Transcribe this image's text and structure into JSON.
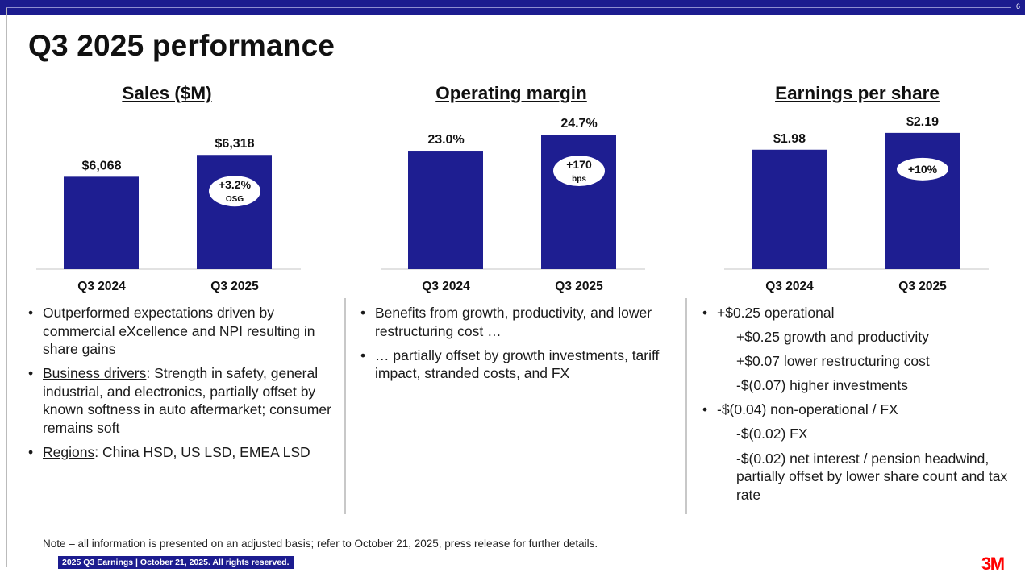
{
  "page_number": "6",
  "title": "Q3 2025 performance",
  "colors": {
    "brand_blue": "#1c1c8f",
    "bar": "#1e1e91",
    "logo_red": "#ff0000"
  },
  "chart_data": [
    {
      "type": "bar",
      "title": "Sales ($M)",
      "categories": [
        "Q3 2024",
        "Q3 2025"
      ],
      "values": [
        6068,
        6318
      ],
      "data_labels": [
        "$6,068",
        "$6,318"
      ],
      "ylim": [
        5010,
        6800
      ],
      "badge": {
        "main": "+3.2%",
        "sub": "OSG"
      }
    },
    {
      "type": "bar",
      "title": "Operating margin",
      "categories": [
        "Q3 2024",
        "Q3 2025"
      ],
      "values": [
        23.0,
        24.7
      ],
      "data_labels": [
        "23.0%",
        "24.7%"
      ],
      "ylim": [
        10.5,
        27
      ],
      "badge": {
        "main": "+170",
        "sub": "bps"
      }
    },
    {
      "type": "bar",
      "title": "Earnings per share",
      "categories": [
        "Q3 2024",
        "Q3 2025"
      ],
      "values": [
        1.98,
        2.19
      ],
      "data_labels": [
        "$1.98",
        "$2.19"
      ],
      "ylim": [
        0.49,
        2.44
      ],
      "badge": {
        "main": "+10%",
        "sub": ""
      }
    }
  ],
  "columns": [
    [
      {
        "level": 1,
        "underline": "",
        "text": "Outperformed expectations driven by commercial eXcellence and NPI resulting in share gains"
      },
      {
        "level": 1,
        "underline": "Business drivers",
        "text": ": Strength in safety, general industrial, and electronics, partially offset by known softness in auto aftermarket; consumer remains soft"
      },
      {
        "level": 1,
        "underline": "Regions",
        "text": ": China HSD, US LSD, EMEA LSD"
      }
    ],
    [
      {
        "level": 1,
        "underline": "",
        "text": "Benefits from growth, productivity, and lower restructuring cost …"
      },
      {
        "level": 1,
        "underline": "",
        "text": "… partially offset by growth investments, tariff impact, stranded costs, and FX"
      }
    ],
    [
      {
        "level": 1,
        "underline": "",
        "text": "+$0.25 operational"
      },
      {
        "level": 2,
        "underline": "",
        "text": "+$0.25 growth and productivity"
      },
      {
        "level": 2,
        "underline": "",
        "text": "+$0.07 lower restructuring cost"
      },
      {
        "level": 2,
        "underline": "",
        "text": "-$(0.07) higher investments"
      },
      {
        "level": 1,
        "underline": "",
        "text": "-$(0.04) non-operational / FX"
      },
      {
        "level": 2,
        "underline": "",
        "text": "-$(0.02) FX"
      },
      {
        "level": 2,
        "underline": "",
        "text": "-$(0.02) net interest / pension headwind, partially offset by lower share count and tax rate"
      }
    ]
  ],
  "note": "Note – all information is presented on an adjusted basis; refer to October 21, 2025, press release for further details.",
  "footer": "2025 Q3 Earnings | October 21, 2025. All rights reserved.",
  "logo_text": "3M"
}
